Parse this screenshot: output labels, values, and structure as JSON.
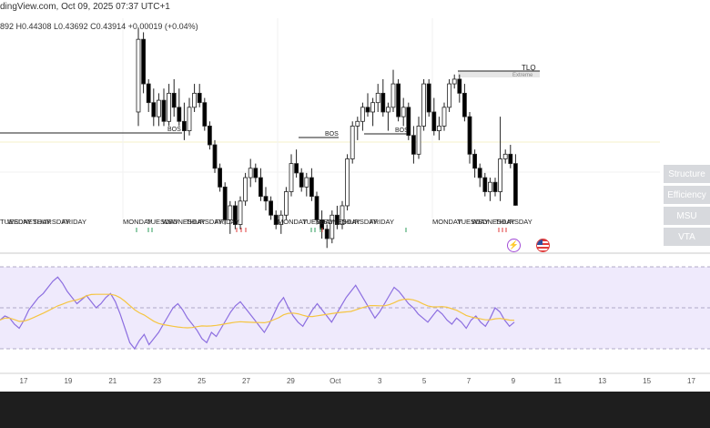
{
  "header": {
    "source": "dingView.com, Oct 09, 2025 07:37 UTC+1",
    "ohlc": "892  H0.44308  L0.43692  C0.43914  +0.00019 (+0.04%)"
  },
  "side_buttons": [
    "Structure",
    "Efficiency",
    "MSU",
    "VTA"
  ],
  "annotations": {
    "bos": [
      "BOS",
      "BOS",
      "BOS"
    ],
    "tlq": "TLQ",
    "extreme": "Extreme"
  },
  "colors": {
    "up_candle": "#ffffff",
    "down_candle": "#000000",
    "wick": "#222222",
    "rsi_line": "#8c6ee0",
    "rsi_ma": "#f5c542",
    "rsi_band": "#efeafc",
    "day_marker_green": "#2e9e5b",
    "day_marker_red": "#e03b3b",
    "bottom_bar": "#1e1e1e"
  },
  "chart_data": {
    "type": "candlestick",
    "x_ticks": [
      "17",
      "19",
      "21",
      "23",
      "25",
      "27",
      "29",
      "Oct",
      "3",
      "5",
      "7",
      "9",
      "11",
      "13",
      "15",
      "17"
    ],
    "day_labels": [
      "TUESDAY",
      "WEDNESDAY",
      "THURSDAY",
      "FRIDAY",
      "MONDAY",
      "TUESDAY",
      "WEDNESDAY",
      "THURSDAY",
      "FRIDAY",
      "MONDAY",
      "TUESDAY",
      "WEDNESDAY",
      "THURSDAY",
      "FRIDAY",
      "MONDAY",
      "TUESDAY",
      "WEDNESDAY",
      "THURSDAY"
    ],
    "candles": [
      {
        "o": 0.459,
        "h": 0.477,
        "l": 0.456,
        "c": 0.4745
      },
      {
        "o": 0.4745,
        "h": 0.476,
        "l": 0.463,
        "c": 0.465
      },
      {
        "o": 0.465,
        "h": 0.466,
        "l": 0.459,
        "c": 0.461
      },
      {
        "o": 0.461,
        "h": 0.464,
        "l": 0.456,
        "c": 0.458
      },
      {
        "o": 0.458,
        "h": 0.463,
        "l": 0.456,
        "c": 0.4615
      },
      {
        "o": 0.4615,
        "h": 0.464,
        "l": 0.456,
        "c": 0.457
      },
      {
        "o": 0.457,
        "h": 0.465,
        "l": 0.456,
        "c": 0.463
      },
      {
        "o": 0.463,
        "h": 0.466,
        "l": 0.458,
        "c": 0.46
      },
      {
        "o": 0.46,
        "h": 0.464,
        "l": 0.456,
        "c": 0.457
      },
      {
        "o": 0.457,
        "h": 0.461,
        "l": 0.453,
        "c": 0.455
      },
      {
        "o": 0.455,
        "h": 0.462,
        "l": 0.454,
        "c": 0.46
      },
      {
        "o": 0.46,
        "h": 0.465,
        "l": 0.459,
        "c": 0.463
      },
      {
        "o": 0.463,
        "h": 0.465,
        "l": 0.46,
        "c": 0.461
      },
      {
        "o": 0.461,
        "h": 0.462,
        "l": 0.455,
        "c": 0.456
      },
      {
        "o": 0.456,
        "h": 0.457,
        "l": 0.451,
        "c": 0.452
      },
      {
        "o": 0.452,
        "h": 0.453,
        "l": 0.446,
        "c": 0.447
      },
      {
        "o": 0.447,
        "h": 0.448,
        "l": 0.442,
        "c": 0.443
      },
      {
        "o": 0.443,
        "h": 0.444,
        "l": 0.435,
        "c": 0.436
      },
      {
        "o": 0.436,
        "h": 0.44,
        "l": 0.433,
        "c": 0.439
      },
      {
        "o": 0.439,
        "h": 0.44,
        "l": 0.434,
        "c": 0.435
      },
      {
        "o": 0.435,
        "h": 0.441,
        "l": 0.434,
        "c": 0.44
      },
      {
        "o": 0.44,
        "h": 0.446,
        "l": 0.439,
        "c": 0.445
      },
      {
        "o": 0.445,
        "h": 0.449,
        "l": 0.443,
        "c": 0.447
      },
      {
        "o": 0.447,
        "h": 0.448,
        "l": 0.444,
        "c": 0.445
      },
      {
        "o": 0.445,
        "h": 0.447,
        "l": 0.44,
        "c": 0.441
      },
      {
        "o": 0.441,
        "h": 0.443,
        "l": 0.438,
        "c": 0.44
      },
      {
        "o": 0.44,
        "h": 0.441,
        "l": 0.436,
        "c": 0.437
      },
      {
        "o": 0.437,
        "h": 0.438,
        "l": 0.434,
        "c": 0.435
      },
      {
        "o": 0.435,
        "h": 0.438,
        "l": 0.433,
        "c": 0.437
      },
      {
        "o": 0.437,
        "h": 0.443,
        "l": 0.436,
        "c": 0.442
      },
      {
        "o": 0.442,
        "h": 0.45,
        "l": 0.441,
        "c": 0.448
      },
      {
        "o": 0.448,
        "h": 0.451,
        "l": 0.445,
        "c": 0.446
      },
      {
        "o": 0.446,
        "h": 0.447,
        "l": 0.442,
        "c": 0.443
      },
      {
        "o": 0.443,
        "h": 0.446,
        "l": 0.441,
        "c": 0.445
      },
      {
        "o": 0.445,
        "h": 0.447,
        "l": 0.44,
        "c": 0.441
      },
      {
        "o": 0.441,
        "h": 0.442,
        "l": 0.435,
        "c": 0.436
      },
      {
        "o": 0.436,
        "h": 0.438,
        "l": 0.432,
        "c": 0.434
      },
      {
        "o": 0.434,
        "h": 0.435,
        "l": 0.43,
        "c": 0.432
      },
      {
        "o": 0.432,
        "h": 0.438,
        "l": 0.431,
        "c": 0.437
      },
      {
        "o": 0.437,
        "h": 0.439,
        "l": 0.434,
        "c": 0.435
      },
      {
        "o": 0.435,
        "h": 0.44,
        "l": 0.434,
        "c": 0.439
      },
      {
        "o": 0.439,
        "h": 0.45,
        "l": 0.438,
        "c": 0.449
      },
      {
        "o": 0.449,
        "h": 0.457,
        "l": 0.448,
        "c": 0.456
      },
      {
        "o": 0.456,
        "h": 0.458,
        "l": 0.453,
        "c": 0.457
      },
      {
        "o": 0.457,
        "h": 0.461,
        "l": 0.455,
        "c": 0.46
      },
      {
        "o": 0.46,
        "h": 0.463,
        "l": 0.458,
        "c": 0.459
      },
      {
        "o": 0.459,
        "h": 0.462,
        "l": 0.456,
        "c": 0.461
      },
      {
        "o": 0.461,
        "h": 0.465,
        "l": 0.459,
        "c": 0.463
      },
      {
        "o": 0.463,
        "h": 0.466,
        "l": 0.458,
        "c": 0.459
      },
      {
        "o": 0.459,
        "h": 0.461,
        "l": 0.455,
        "c": 0.46
      },
      {
        "o": 0.46,
        "h": 0.468,
        "l": 0.459,
        "c": 0.465
      },
      {
        "o": 0.465,
        "h": 0.466,
        "l": 0.457,
        "c": 0.458
      },
      {
        "o": 0.458,
        "h": 0.462,
        "l": 0.456,
        "c": 0.46
      },
      {
        "o": 0.46,
        "h": 0.461,
        "l": 0.453,
        "c": 0.454
      },
      {
        "o": 0.454,
        "h": 0.456,
        "l": 0.448,
        "c": 0.45
      },
      {
        "o": 0.45,
        "h": 0.458,
        "l": 0.449,
        "c": 0.456
      },
      {
        "o": 0.456,
        "h": 0.466,
        "l": 0.455,
        "c": 0.465
      },
      {
        "o": 0.465,
        "h": 0.466,
        "l": 0.458,
        "c": 0.459
      },
      {
        "o": 0.459,
        "h": 0.462,
        "l": 0.454,
        "c": 0.455
      },
      {
        "o": 0.455,
        "h": 0.458,
        "l": 0.453,
        "c": 0.456
      },
      {
        "o": 0.456,
        "h": 0.461,
        "l": 0.455,
        "c": 0.46
      },
      {
        "o": 0.46,
        "h": 0.466,
        "l": 0.459,
        "c": 0.465
      },
      {
        "o": 0.465,
        "h": 0.467,
        "l": 0.464,
        "c": 0.466
      },
      {
        "o": 0.466,
        "h": 0.467,
        "l": 0.461,
        "c": 0.463
      },
      {
        "o": 0.463,
        "h": 0.465,
        "l": 0.457,
        "c": 0.458
      },
      {
        "o": 0.458,
        "h": 0.459,
        "l": 0.448,
        "c": 0.45
      },
      {
        "o": 0.45,
        "h": 0.451,
        "l": 0.445,
        "c": 0.447
      },
      {
        "o": 0.447,
        "h": 0.448,
        "l": 0.443,
        "c": 0.445
      },
      {
        "o": 0.445,
        "h": 0.446,
        "l": 0.441,
        "c": 0.442
      },
      {
        "o": 0.442,
        "h": 0.445,
        "l": 0.44,
        "c": 0.444
      },
      {
        "o": 0.444,
        "h": 0.445,
        "l": 0.441,
        "c": 0.442
      },
      {
        "o": 0.442,
        "h": 0.458,
        "l": 0.44,
        "c": 0.449
      },
      {
        "o": 0.449,
        "h": 0.451,
        "l": 0.448,
        "c": 0.45
      },
      {
        "o": 0.45,
        "h": 0.452,
        "l": 0.447,
        "c": 0.448
      },
      {
        "o": 0.448,
        "h": 0.45,
        "l": 0.439,
        "c": 0.4391
      }
    ],
    "rsi": [
      44,
      46,
      45,
      42,
      40,
      44,
      49,
      52,
      55,
      57,
      60,
      63,
      65,
      62,
      58,
      55,
      52,
      54,
      56,
      53,
      50,
      52,
      55,
      57,
      53,
      47,
      40,
      33,
      30,
      34,
      37,
      32,
      35,
      38,
      42,
      46,
      50,
      52,
      49,
      45,
      42,
      39,
      35,
      33,
      38,
      36,
      40,
      44,
      48,
      51,
      53,
      50,
      47,
      44,
      41,
      38,
      42,
      47,
      52,
      55,
      50,
      46,
      43,
      41,
      45,
      49,
      52,
      49,
      46,
      43,
      47,
      51,
      55,
      58,
      61,
      57,
      53,
      49,
      45,
      48,
      52,
      56,
      60,
      58,
      55,
      52,
      50,
      47,
      45,
      43,
      46,
      49,
      47,
      44,
      42,
      45,
      43,
      40,
      44,
      46,
      43,
      41,
      45,
      50,
      48,
      44,
      41,
      43
    ],
    "rsi_ma_smoothing": 14
  }
}
